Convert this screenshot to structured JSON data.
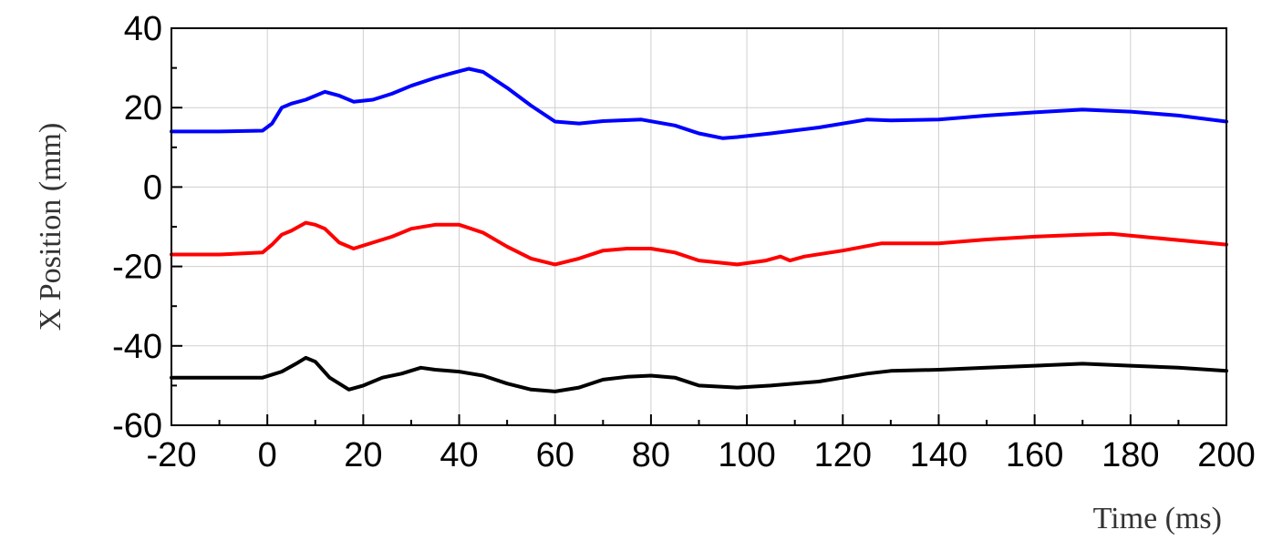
{
  "chart_data": {
    "type": "line",
    "xlabel": "Time (ms)",
    "ylabel": "X Position (mm)",
    "xlim": [
      -20,
      200
    ],
    "ylim": [
      -60,
      40
    ],
    "xticks": [
      -20,
      0,
      20,
      40,
      60,
      80,
      100,
      120,
      140,
      160,
      180,
      200
    ],
    "yticks": [
      -60,
      -40,
      -20,
      0,
      20,
      40
    ],
    "grid": true,
    "legend": "none",
    "series": [
      {
        "color": "#0000ff",
        "x": [
          -20,
          -10,
          -1,
          1,
          3,
          5,
          8,
          12,
          15,
          18,
          22,
          26,
          30,
          35,
          38,
          42,
          45,
          50,
          55,
          60,
          65,
          70,
          78,
          85,
          90,
          95,
          98,
          105,
          115,
          125,
          130,
          140,
          150,
          160,
          170,
          180,
          190,
          200
        ],
        "y": [
          14,
          14,
          14.2,
          16,
          20,
          21,
          22,
          24,
          23,
          21.5,
          22,
          23.5,
          25.5,
          27.5,
          28.5,
          29.8,
          29,
          25,
          20.5,
          16.5,
          16,
          16.6,
          17,
          15.5,
          13.5,
          12.3,
          12.6,
          13.5,
          15,
          17,
          16.8,
          17,
          18,
          18.8,
          19.5,
          19,
          18,
          16.5
        ]
      },
      {
        "color": "#ff0000",
        "x": [
          -20,
          -10,
          -1,
          1,
          3,
          5,
          8,
          10,
          12,
          15,
          18,
          22,
          26,
          30,
          35,
          40,
          45,
          50,
          55,
          60,
          65,
          70,
          75,
          80,
          85,
          90,
          98,
          104,
          107,
          109,
          112,
          120,
          128,
          140,
          150,
          160,
          170,
          176,
          185,
          200
        ],
        "y": [
          -17,
          -17,
          -16.5,
          -14.5,
          -12,
          -11,
          -9,
          -9.5,
          -10.5,
          -14,
          -15.5,
          -14,
          -12.5,
          -10.5,
          -9.5,
          -9.5,
          -11.5,
          -15,
          -18,
          -19.5,
          -18,
          -16,
          -15.5,
          -15.5,
          -16.5,
          -18.5,
          -19.5,
          -18.5,
          -17.5,
          -18.5,
          -17.5,
          -16,
          -14.2,
          -14.2,
          -13.2,
          -12.5,
          -12,
          -11.8,
          -12.8,
          -14.5
        ]
      },
      {
        "color": "#000000",
        "x": [
          -20,
          -10,
          -1,
          3,
          6,
          8,
          10,
          13,
          17,
          20,
          24,
          28,
          32,
          35,
          40,
          45,
          50,
          55,
          60,
          65,
          70,
          75,
          80,
          85,
          90,
          98,
          105,
          115,
          125,
          130,
          140,
          150,
          160,
          170,
          180,
          190,
          200
        ],
        "y": [
          -48,
          -48,
          -48,
          -46.5,
          -44.5,
          -43,
          -44,
          -48,
          -51,
          -50,
          -48,
          -47,
          -45.5,
          -46,
          -46.5,
          -47.5,
          -49.5,
          -51,
          -51.5,
          -50.5,
          -48.5,
          -47.8,
          -47.5,
          -48,
          -50,
          -50.5,
          -50,
          -49,
          -47,
          -46.3,
          -46,
          -45.5,
          -45,
          -44.5,
          -45,
          -45.5,
          -46.3
        ]
      }
    ]
  }
}
